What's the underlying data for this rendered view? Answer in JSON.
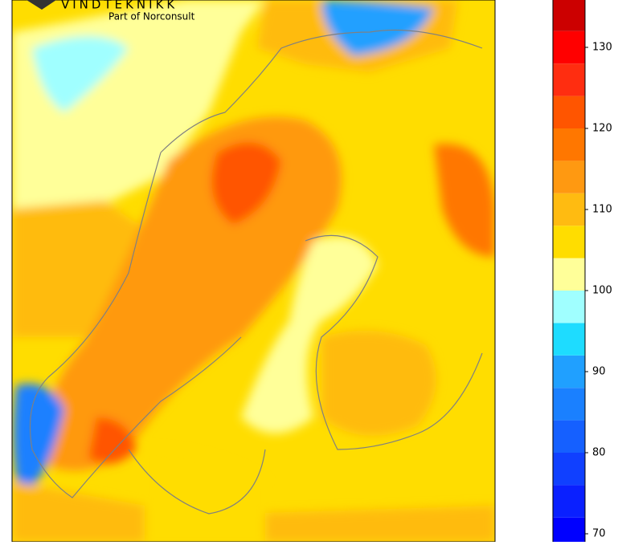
{
  "logo": {
    "name": "VINDTEKNIKK",
    "tagline": "Part of Norconsult"
  },
  "colorbar": {
    "lim": [
      68,
      136
    ],
    "bins": [
      68,
      72,
      76,
      80,
      84,
      88,
      92,
      96,
      100,
      104,
      108,
      112,
      116,
      120,
      124,
      128,
      132,
      136
    ],
    "colors": [
      "#0000ff",
      "#0a20ff",
      "#1040ff",
      "#1560ff",
      "#1a80ff",
      "#20a0ff",
      "#1edcff",
      "#a0ffff",
      "#ffff99",
      "#ffdd00",
      "#ffbb11",
      "#ff9911",
      "#ff7700",
      "#ff5500",
      "#ff2d10",
      "#ff0000",
      "#cc0000"
    ],
    "ticks": [
      70,
      80,
      90,
      100,
      110,
      120,
      130
    ]
  }
}
